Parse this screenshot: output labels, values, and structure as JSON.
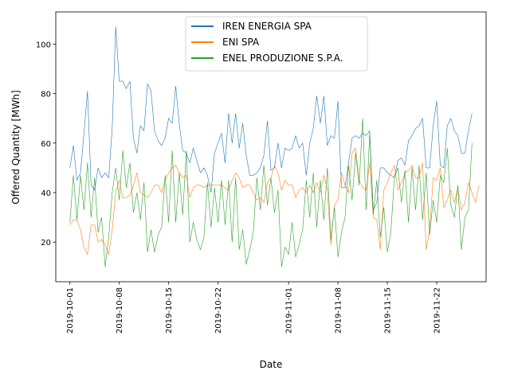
{
  "chart_data": {
    "type": "line",
    "xlabel": "Date",
    "ylabel": "Offered Quantity [MWh]",
    "x_start": "2019-10-01",
    "x_step_days": 0.5,
    "xlim": [
      "2019-09-29",
      "2019-11-29"
    ],
    "ylim": [
      4,
      113
    ],
    "y_ticks": [
      20,
      40,
      60,
      80,
      100
    ],
    "x_ticks": [
      "2019-10-01",
      "2019-10-08",
      "2019-10-15",
      "2019-10-22",
      "2019-11-01",
      "2019-11-08",
      "2019-11-15",
      "2019-11-22"
    ],
    "grid": false,
    "legend_position": "top-center",
    "series": [
      {
        "name": "IREN ENERGIA SPA",
        "color": "#1f77b4",
        "values": [
          50,
          59,
          45,
          48,
          64,
          81,
          43,
          41,
          50,
          46,
          48,
          46,
          66,
          107,
          85,
          85,
          82,
          85,
          62,
          56,
          67,
          65,
          84,
          81,
          65,
          61,
          59,
          62,
          70,
          68,
          83,
          68,
          57,
          56,
          52,
          58,
          53,
          48,
          50,
          47,
          40,
          56,
          60,
          64,
          52,
          72,
          60,
          72,
          58,
          68,
          55,
          47,
          47,
          48,
          50,
          55,
          69,
          49,
          50,
          60,
          50,
          58,
          57,
          58,
          63,
          58,
          60,
          47,
          60,
          66,
          79,
          68,
          79,
          59,
          63,
          62,
          77,
          42,
          42,
          52,
          62,
          63,
          62,
          64,
          63,
          65,
          33,
          36,
          50,
          50,
          48,
          47,
          46,
          53,
          54,
          51,
          61,
          63,
          66,
          67,
          70,
          50,
          50,
          67,
          77,
          51,
          50,
          67,
          70,
          65,
          63,
          56,
          56,
          65,
          72
        ]
      },
      {
        "name": "ENI SPA",
        "color": "#ff7f0e",
        "values": [
          27,
          29,
          29,
          25,
          18,
          15,
          27,
          27,
          20,
          21,
          19,
          15,
          25,
          40,
          45,
          38,
          38,
          39,
          43,
          48,
          40,
          39,
          38,
          40,
          43,
          43,
          40,
          45,
          48,
          50,
          51,
          48,
          46,
          47,
          38,
          42,
          43,
          43,
          42,
          43,
          43,
          43,
          43,
          43,
          42,
          41,
          45,
          48,
          46,
          42,
          43,
          43,
          40,
          37,
          38,
          36,
          44,
          46,
          51,
          48,
          41,
          45,
          43,
          43,
          38,
          41,
          42,
          40,
          43,
          40,
          44,
          40,
          47,
          41,
          19,
          35,
          37,
          48,
          43,
          40,
          56,
          58,
          45,
          42,
          41,
          52,
          30,
          29,
          17,
          41,
          44,
          48,
          51,
          41,
          44,
          48,
          49,
          51,
          46,
          46,
          52,
          17,
          25,
          46,
          45,
          50,
          34,
          37,
          41,
          36,
          42,
          33,
          36,
          44,
          40,
          36,
          43
        ]
      },
      {
        "name": "ENEL PRODUZIONE S.P.A.",
        "color": "#2ca02c",
        "values": [
          28,
          47,
          29,
          47,
          33,
          52,
          30,
          46,
          24,
          30,
          10,
          22,
          40,
          50,
          37,
          57,
          42,
          52,
          32,
          40,
          29,
          44,
          16,
          25,
          16,
          23,
          26,
          47,
          28,
          57,
          28,
          48,
          31,
          57,
          20,
          28,
          21,
          17,
          22,
          44,
          26,
          42,
          28,
          45,
          27,
          45,
          20,
          46,
          17,
          25,
          11,
          17,
          24,
          46,
          33,
          51,
          35,
          46,
          32,
          41,
          10,
          18,
          15,
          28,
          14,
          19,
          25,
          45,
          30,
          48,
          26,
          45,
          29,
          50,
          21,
          34,
          14,
          24,
          30,
          51,
          37,
          56,
          43,
          70,
          33,
          64,
          31,
          45,
          22,
          34,
          16,
          24,
          46,
          50,
          36,
          49,
          28,
          50,
          33,
          51,
          29,
          48,
          23,
          37,
          28,
          47,
          44,
          58,
          35,
          30,
          43,
          17,
          30,
          33,
          60
        ]
      }
    ]
  }
}
